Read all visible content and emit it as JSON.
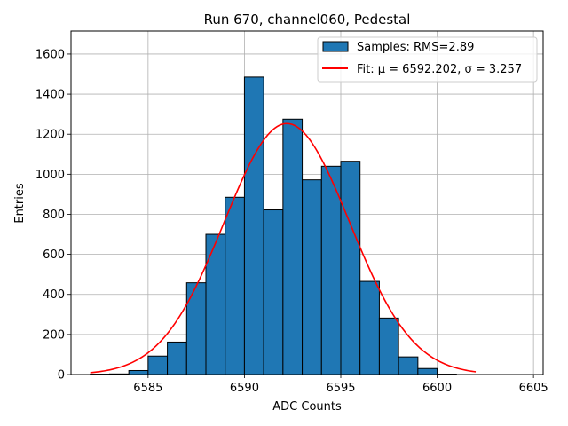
{
  "chart_data": {
    "type": "bar",
    "title": "Run 670, channel060, Pedestal",
    "xlabel": "ADC Counts",
    "ylabel": "Entries",
    "xlim": [
      6581,
      6605.5
    ],
    "ylim": [
      0,
      1715
    ],
    "xticks": [
      6585,
      6590,
      6595,
      6600,
      6605
    ],
    "yticks": [
      0,
      200,
      400,
      600,
      800,
      1000,
      1200,
      1400,
      1600
    ],
    "grid": true,
    "legend_position": "upper-right",
    "bins": {
      "edges": [
        6582,
        6583,
        6584,
        6585,
        6586,
        6587,
        6588,
        6589,
        6590,
        6591,
        6592,
        6593,
        6594,
        6595,
        6596,
        6597,
        6598,
        6599,
        6600,
        6601,
        6602,
        6603
      ],
      "counts": [
        2,
        3,
        20,
        92,
        162,
        458,
        700,
        885,
        1485,
        822,
        1275,
        972,
        1040,
        1065,
        465,
        282,
        88,
        30,
        2,
        0,
        0
      ]
    },
    "series": [
      {
        "name": "Samples: RMS=2.89",
        "kind": "histogram",
        "color": "#1f77b4",
        "edgecolor": "#000000"
      },
      {
        "name": "Fit: μ = 6592.202, σ = 3.257",
        "kind": "gaussian",
        "color": "#ff0000",
        "mu": 6592.202,
        "sigma": 3.257,
        "amplitude": 1253,
        "x_range": [
          6582,
          6602
        ]
      }
    ]
  }
}
